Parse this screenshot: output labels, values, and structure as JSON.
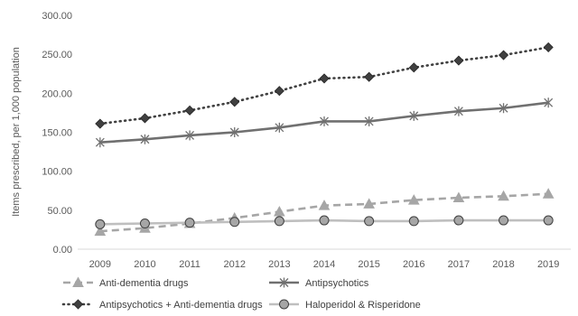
{
  "chart_data": {
    "type": "line",
    "title": "",
    "xlabel": "",
    "ylabel": "Items prescribed, per 1,000 population",
    "ylim": [
      0,
      300
    ],
    "ytick_values": [
      0,
      50,
      100,
      150,
      200,
      250,
      300
    ],
    "ytick_labels": [
      "0.00",
      "50.00",
      "100.00",
      "150.00",
      "200.00",
      "250.00",
      "300.00"
    ],
    "categories": [
      "2009",
      "2010",
      "2011",
      "2012",
      "2013",
      "2014",
      "2015",
      "2016",
      "2017",
      "2018",
      "2019"
    ],
    "grid": false,
    "legend_position": "bottom",
    "series": [
      {
        "name": "Anti-dementia drugs",
        "values": [
          23,
          27,
          33,
          40,
          48,
          56,
          58,
          63,
          66,
          68,
          71
        ],
        "color": "#a6a6a6",
        "line_style": "dashed",
        "marker": "triangle"
      },
      {
        "name": "Antipsychotics",
        "values": [
          137,
          141,
          146,
          150,
          156,
          164,
          164,
          171,
          177,
          181,
          188
        ],
        "color": "#707070",
        "line_style": "solid",
        "marker": "star"
      },
      {
        "name": "Antipsychotics + Anti-dementia drugs",
        "values": [
          161,
          168,
          178,
          189,
          203,
          219,
          221,
          233,
          242,
          249,
          259
        ],
        "color": "#404040",
        "line_style": "dotted",
        "marker": "diamond"
      },
      {
        "name": "Haloperidol & Risperidone",
        "values": [
          32,
          33,
          34,
          35,
          36,
          37,
          36,
          36,
          37,
          37,
          37
        ],
        "color": "#bfbfbf",
        "line_style": "solid",
        "marker": "circle"
      }
    ]
  }
}
